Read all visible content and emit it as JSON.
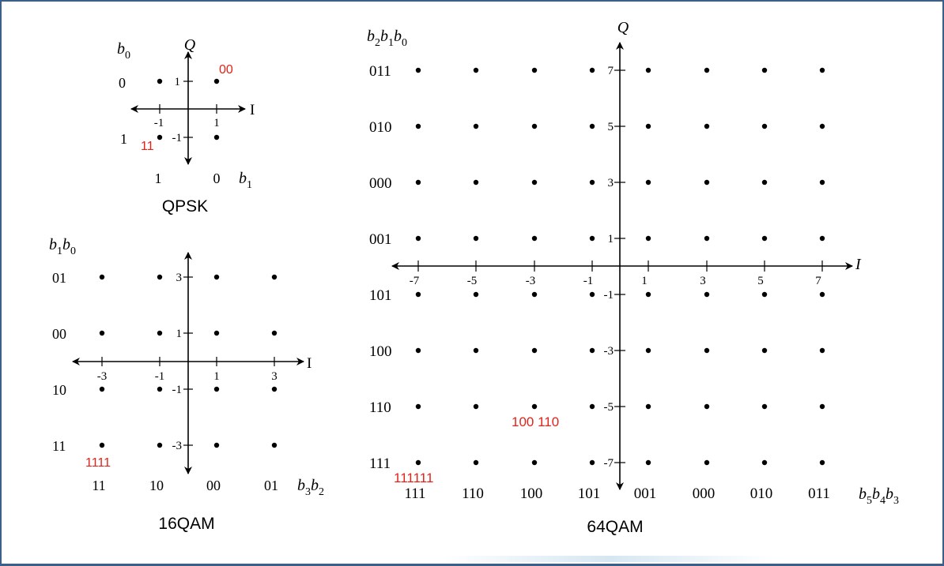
{
  "qpsk": {
    "title": "QPSK",
    "axis_i": "I",
    "axis_q": "Q",
    "row_bit_label": "b",
    "row_bit_sub": "0",
    "col_bit_label": "b",
    "col_bit_sub": "1",
    "row_codes": [
      "0",
      "1"
    ],
    "col_codes": [
      "1",
      "0"
    ],
    "tick_labels": {
      "x_neg": "-1",
      "x_pos": "1",
      "y_pos": "1",
      "y_neg": "-1"
    },
    "annotations": [
      "00",
      "11"
    ]
  },
  "qam16": {
    "title": "16QAM",
    "axis_i": "I",
    "row_bit_label": [
      "b",
      "1",
      "b",
      "0"
    ],
    "col_bit_label": [
      "b",
      "3",
      "b",
      "2"
    ],
    "row_codes": [
      "01",
      "00",
      "10",
      "11"
    ],
    "col_codes": [
      "11",
      "10",
      "00",
      "01"
    ],
    "x_ticks": [
      "-3",
      "-1",
      "1",
      "3"
    ],
    "y_ticks": [
      "3",
      "1",
      "-1",
      "-3"
    ],
    "annotation": "1111"
  },
  "qam64": {
    "title": "64QAM",
    "axis_i": "I",
    "axis_q": "Q",
    "row_bit_label": [
      "b",
      "2",
      "b",
      "1",
      "b",
      "0"
    ],
    "col_bit_label": [
      "b",
      "5",
      "b",
      "4",
      "b",
      "3"
    ],
    "row_codes": [
      "011",
      "010",
      "000",
      "001",
      "101",
      "100",
      "110",
      "111"
    ],
    "col_codes": [
      "111",
      "110",
      "100",
      "101",
      "001",
      "000",
      "010",
      "011"
    ],
    "x_ticks": [
      "-7",
      "-5",
      "-3",
      "-1",
      "1",
      "3",
      "5",
      "7"
    ],
    "y_ticks": [
      "7",
      "5",
      "3",
      "1",
      "-1",
      "-3",
      "-5",
      "-7"
    ],
    "annotations": [
      "100 110",
      "111111"
    ]
  },
  "colors": {
    "annotation": "#e2231a",
    "frame": "#3b5f86",
    "ink": "#000000"
  }
}
